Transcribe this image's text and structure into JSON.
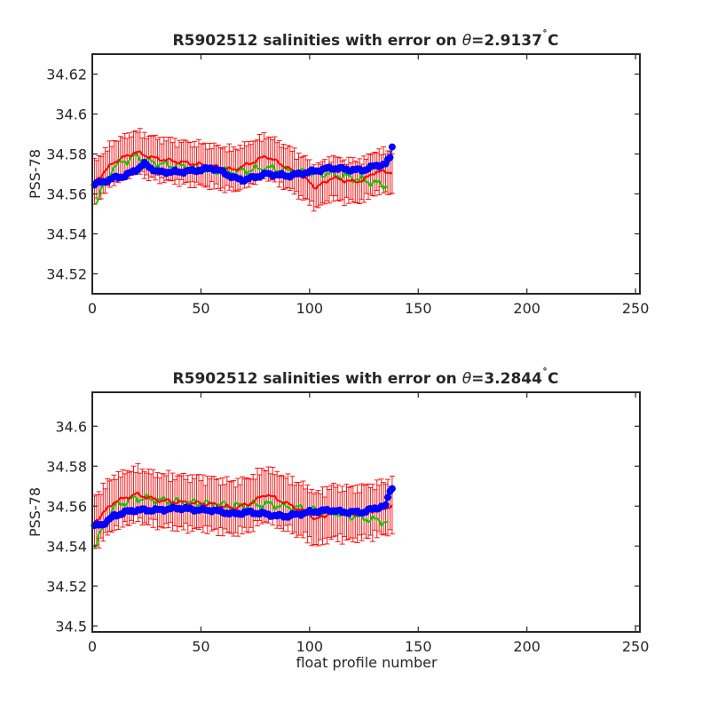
{
  "chart_data": [
    {
      "type": "line",
      "title": "R5902512 salinities with error on θ=2.9137˚C",
      "title_parts": {
        "prefix": "R5902512 salinities with error on ",
        "symbol": "θ",
        "value": "=2.9137",
        "degree": "˚",
        "unit": "C"
      },
      "xlabel": "",
      "ylabel": "PSS-78",
      "xlim": [
        0,
        252
      ],
      "ylim": [
        34.51,
        34.63
      ],
      "xticks": [
        0,
        50,
        100,
        150,
        200,
        250
      ],
      "xtick_labels": [
        "0",
        "50",
        "100",
        "150",
        "200",
        "250"
      ],
      "yticks": [
        34.52,
        34.54,
        34.56,
        34.58,
        34.6,
        34.62
      ],
      "ytick_labels": [
        "34.52",
        "34.54",
        "34.56",
        "34.58",
        "34.6",
        "34.62"
      ],
      "grid": false,
      "profile_range": [
        1,
        138
      ],
      "series": [
        {
          "role": "mapped-estimate",
          "color": "#ff0000",
          "anchors": [
            [
              1,
              34.566
            ],
            [
              10,
              34.576
            ],
            [
              20,
              34.581
            ],
            [
              28,
              34.578
            ],
            [
              40,
              34.576
            ],
            [
              55,
              34.574
            ],
            [
              65,
              34.572
            ],
            [
              72,
              34.575
            ],
            [
              80,
              34.579
            ],
            [
              90,
              34.573
            ],
            [
              100,
              34.566
            ],
            [
              103,
              34.563
            ],
            [
              110,
              34.568
            ],
            [
              120,
              34.566
            ],
            [
              125,
              34.567
            ],
            [
              130,
              34.571
            ],
            [
              138,
              34.571
            ]
          ],
          "error_half_width": 0.008
        },
        {
          "role": "calibrated",
          "color": "#00cc00",
          "anchors": [
            [
              1,
              34.555
            ],
            [
              10,
              34.574
            ],
            [
              20,
              34.579
            ],
            [
              30,
              34.575
            ],
            [
              40,
              34.574
            ],
            [
              55,
              34.572
            ],
            [
              65,
              34.571
            ],
            [
              80,
              34.573
            ],
            [
              95,
              34.571
            ],
            [
              110,
              34.57
            ],
            [
              120,
              34.568
            ],
            [
              128,
              34.566
            ],
            [
              136,
              34.564
            ]
          ]
        },
        {
          "role": "float-salinity",
          "color": "#0000ff",
          "anchors": [
            [
              1,
              34.565
            ],
            [
              5,
              34.566
            ],
            [
              10,
              34.568
            ],
            [
              15,
              34.569
            ],
            [
              20,
              34.572
            ],
            [
              24,
              34.575
            ],
            [
              30,
              34.571
            ],
            [
              40,
              34.571
            ],
            [
              50,
              34.572
            ],
            [
              55,
              34.573
            ],
            [
              60,
              34.571
            ],
            [
              65,
              34.568
            ],
            [
              70,
              34.567
            ],
            [
              80,
              34.57
            ],
            [
              90,
              34.569
            ],
            [
              100,
              34.571
            ],
            [
              110,
              34.573
            ],
            [
              120,
              34.572
            ],
            [
              125,
              34.572
            ],
            [
              130,
              34.574
            ],
            [
              135,
              34.575
            ],
            [
              137,
              34.578
            ],
            [
              138,
              34.584
            ]
          ]
        }
      ]
    },
    {
      "type": "line",
      "title": "R5902512 salinities with error on θ=3.2844˚C",
      "title_parts": {
        "prefix": "R5902512 salinities with error on ",
        "symbol": "θ",
        "value": "=3.2844",
        "degree": "˚",
        "unit": "C"
      },
      "xlabel": "float profile number",
      "ylabel": "PSS-78",
      "xlim": [
        0,
        252
      ],
      "ylim": [
        34.497,
        34.617
      ],
      "xticks": [
        0,
        50,
        100,
        150,
        200,
        250
      ],
      "xtick_labels": [
        "0",
        "50",
        "100",
        "150",
        "200",
        "250"
      ],
      "yticks": [
        34.5,
        34.52,
        34.54,
        34.56,
        34.58,
        34.6
      ],
      "ytick_labels": [
        "34.5",
        "34.52",
        "34.54",
        "34.56",
        "34.58",
        "34.6"
      ],
      "grid": false,
      "profile_range": [
        1,
        138
      ],
      "series": [
        {
          "role": "mapped-estimate",
          "color": "#ff0000",
          "anchors": [
            [
              1,
              34.552
            ],
            [
              10,
              34.562
            ],
            [
              20,
              34.566
            ],
            [
              30,
              34.563
            ],
            [
              40,
              34.562
            ],
            [
              55,
              34.561
            ],
            [
              65,
              34.559
            ],
            [
              72,
              34.561
            ],
            [
              80,
              34.566
            ],
            [
              90,
              34.561
            ],
            [
              100,
              34.556
            ],
            [
              103,
              34.553
            ],
            [
              110,
              34.557
            ],
            [
              120,
              34.556
            ],
            [
              125,
              34.557
            ],
            [
              130,
              34.558
            ],
            [
              138,
              34.56
            ]
          ],
          "error_half_width": 0.01
        },
        {
          "role": "calibrated",
          "color": "#00cc00",
          "anchors": [
            [
              1,
              34.54
            ],
            [
              10,
              34.56
            ],
            [
              20,
              34.564
            ],
            [
              30,
              34.563
            ],
            [
              40,
              34.562
            ],
            [
              55,
              34.561
            ],
            [
              65,
              34.56
            ],
            [
              80,
              34.561
            ],
            [
              95,
              34.559
            ],
            [
              110,
              34.557
            ],
            [
              120,
              34.555
            ],
            [
              130,
              34.553
            ],
            [
              136,
              34.552
            ]
          ]
        },
        {
          "role": "float-salinity",
          "color": "#0000ff",
          "anchors": [
            [
              1,
              34.55
            ],
            [
              5,
              34.551
            ],
            [
              10,
              34.555
            ],
            [
              15,
              34.557
            ],
            [
              20,
              34.558
            ],
            [
              30,
              34.558
            ],
            [
              40,
              34.559
            ],
            [
              50,
              34.558
            ],
            [
              55,
              34.558
            ],
            [
              60,
              34.557
            ],
            [
              65,
              34.556
            ],
            [
              72,
              34.557
            ],
            [
              80,
              34.556
            ],
            [
              85,
              34.555
            ],
            [
              90,
              34.555
            ],
            [
              100,
              34.557
            ],
            [
              110,
              34.558
            ],
            [
              115,
              34.557
            ],
            [
              120,
              34.557
            ],
            [
              125,
              34.557
            ],
            [
              130,
              34.559
            ],
            [
              135,
              34.56
            ],
            [
              137,
              34.568
            ],
            [
              138,
              34.569
            ]
          ]
        }
      ]
    }
  ]
}
